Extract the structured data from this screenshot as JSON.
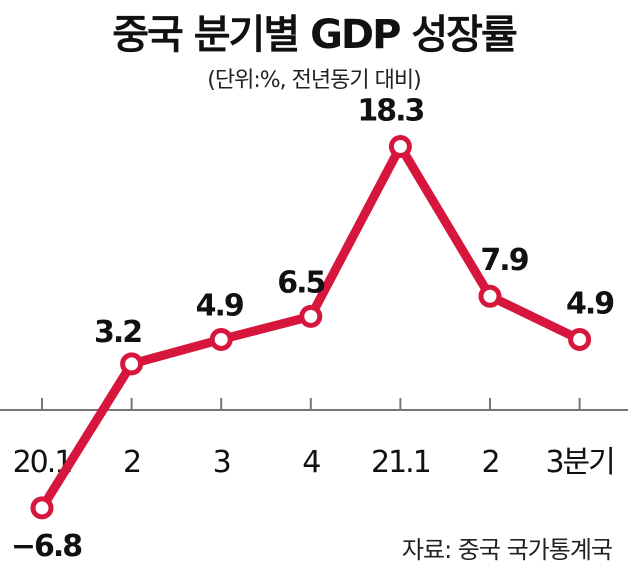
{
  "chart_data": {
    "type": "line",
    "title": "중국 분기별 GDP 성장률",
    "subtitle": "(단위:%, 전년동기 대비)",
    "categories": [
      "20.1",
      "2",
      "3",
      "4",
      "21.1",
      "2",
      "3분기"
    ],
    "series": [
      {
        "name": "GDP 성장률",
        "values": [
          -6.8,
          3.2,
          4.9,
          6.5,
          18.3,
          7.9,
          4.9
        ]
      }
    ],
    "data_labels": [
      "−6.8",
      "3.2",
      "4.9",
      "6.5",
      "18.3",
      "7.9",
      "4.9"
    ],
    "xlabel": "",
    "ylabel": "",
    "ylim": [
      -8,
      20
    ],
    "grid": false,
    "source": "자료: 중국 국가통계국",
    "colors": {
      "line": "#d7163d",
      "axis": "#777777"
    }
  }
}
